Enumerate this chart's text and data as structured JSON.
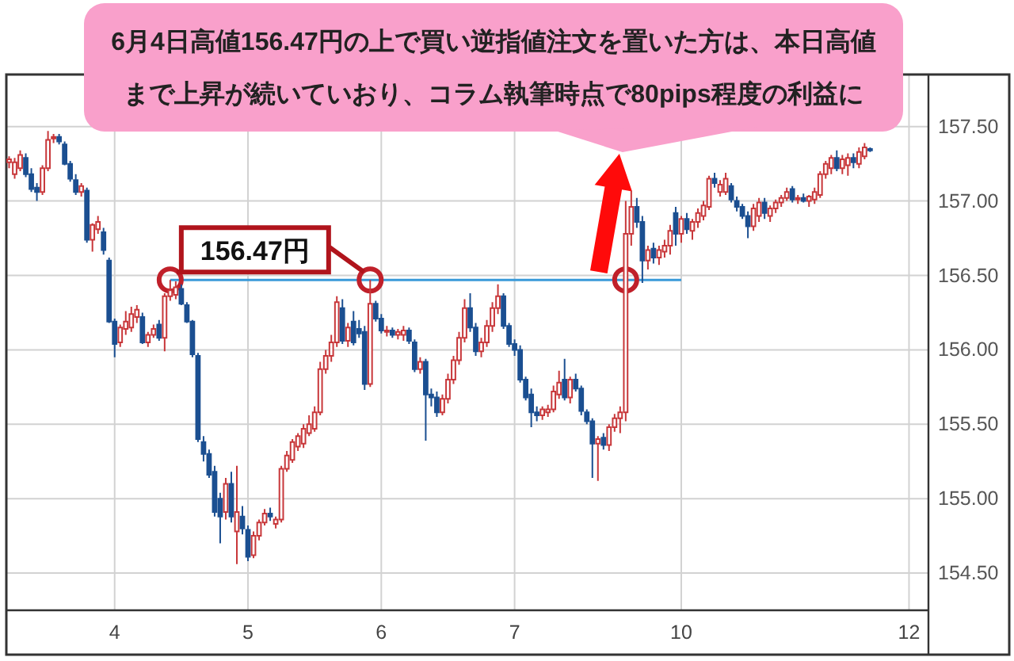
{
  "chart_data": {
    "type": "candlestick",
    "annotations": [
      "6月4日高値156.47円の上で買い逆指値注文を置いた方は、本日高値まで上昇が続いていおり、コラム執筆時点で80pips程度の利益に",
      {
        "text": "156.47円",
        "y": 156.47
      }
    ],
    "categories": [
      null,
      null,
      null,
      null,
      null,
      null,
      null,
      null,
      null,
      null,
      null,
      null,
      null,
      null,
      null,
      null,
      null,
      null,
      null,
      "4",
      null,
      null,
      null,
      null,
      null,
      null,
      null,
      null,
      null,
      null,
      null,
      null,
      null,
      null,
      null,
      null,
      null,
      null,
      null,
      null,
      null,
      null,
      null,
      "5",
      null,
      null,
      null,
      null,
      null,
      null,
      null,
      null,
      null,
      null,
      null,
      null,
      null,
      null,
      null,
      null,
      null,
      null,
      null,
      null,
      null,
      null,
      null,
      "6",
      null,
      null,
      null,
      null,
      null,
      null,
      null,
      null,
      null,
      null,
      null,
      null,
      null,
      null,
      null,
      null,
      null,
      null,
      null,
      null,
      null,
      null,
      null,
      "7",
      null,
      null,
      null,
      null,
      null,
      null,
      null,
      null,
      null,
      null,
      null,
      null,
      null,
      null,
      null,
      null,
      null,
      null,
      null,
      null,
      null,
      null,
      null,
      null,
      null,
      null,
      null,
      null,
      null,
      "10",
      null,
      null,
      null,
      null,
      null,
      null,
      null,
      null,
      null,
      null,
      null,
      null,
      null,
      null,
      null,
      null,
      null,
      null,
      null,
      null,
      null,
      null,
      null,
      null,
      null,
      null,
      null,
      null,
      null,
      null,
      null,
      null,
      null,
      null,
      null,
      null,
      null,
      null,
      null,
      null,
      "12",
      null,
      null,
      null
    ],
    "ylim": [
      154.25,
      157.85
    ],
    "yticks": [
      {
        "value": 154.5,
        "label": "154.50"
      },
      {
        "value": 155,
        "label": "155.00"
      },
      {
        "value": 155.5,
        "label": "155.50"
      },
      {
        "value": 156,
        "label": "156.00"
      },
      {
        "value": 156.5,
        "label": "156.50"
      },
      {
        "value": 157,
        "label": "157.00"
      },
      {
        "value": 157.5,
        "label": "157.50"
      }
    ],
    "grid": true,
    "ohlc": [
      [
        157.26,
        157.3,
        157.22,
        157.28
      ],
      [
        157.18,
        157.29,
        157.15,
        157.26
      ],
      [
        157.22,
        157.34,
        157.2,
        157.31
      ],
      [
        157.29,
        157.32,
        157.16,
        157.18
      ],
      [
        157.18,
        157.22,
        157.06,
        157.08
      ],
      [
        157.09,
        157.12,
        157.0,
        157.06
      ],
      [
        157.06,
        157.24,
        157.04,
        157.22
      ],
      [
        157.22,
        157.47,
        157.2,
        157.41
      ],
      [
        157.42,
        157.45,
        157.39,
        157.43
      ],
      [
        157.43,
        157.45,
        157.38,
        157.4
      ],
      [
        157.38,
        157.4,
        157.24,
        157.25
      ],
      [
        157.25,
        157.27,
        157.13,
        157.15
      ],
      [
        157.14,
        157.18,
        157.04,
        157.06
      ],
      [
        157.06,
        157.12,
        157.03,
        157.1
      ],
      [
        157.07,
        157.09,
        156.72,
        156.74
      ],
      [
        156.74,
        156.85,
        156.66,
        156.84
      ],
      [
        156.81,
        156.9,
        156.78,
        156.86
      ],
      [
        156.79,
        156.82,
        156.64,
        156.67
      ],
      [
        156.6,
        156.62,
        156.18,
        156.19
      ],
      [
        156.19,
        156.21,
        155.95,
        156.04
      ],
      [
        156.05,
        156.17,
        156.02,
        156.15
      ],
      [
        156.14,
        156.26,
        156.1,
        156.19
      ],
      [
        156.15,
        156.29,
        156.12,
        156.24
      ],
      [
        156.22,
        156.3,
        156.18,
        156.27
      ],
      [
        156.22,
        156.25,
        156.04,
        156.05
      ],
      [
        156.05,
        156.12,
        156.02,
        156.1
      ],
      [
        156.1,
        156.17,
        156.08,
        156.14
      ],
      [
        156.17,
        156.2,
        156.06,
        156.08
      ],
      [
        156.08,
        156.38,
        155.99,
        156.36
      ],
      [
        156.36,
        156.47,
        156.33,
        156.4
      ],
      [
        156.37,
        156.46,
        156.34,
        156.42
      ],
      [
        156.41,
        156.44,
        156.3,
        156.31
      ],
      [
        156.3,
        156.32,
        156.18,
        156.19
      ],
      [
        156.19,
        156.2,
        155.95,
        155.97
      ],
      [
        155.96,
        155.98,
        155.38,
        155.4
      ],
      [
        155.38,
        155.42,
        155.25,
        155.3
      ],
      [
        155.3,
        155.33,
        155.14,
        155.16
      ],
      [
        155.18,
        155.22,
        154.88,
        154.91
      ],
      [
        155.0,
        155.04,
        154.7,
        154.88
      ],
      [
        154.91,
        155.14,
        154.86,
        155.1
      ],
      [
        155.1,
        155.18,
        154.84,
        154.88
      ],
      [
        154.78,
        155.22,
        154.56,
        154.91
      ],
      [
        154.88,
        154.95,
        154.76,
        154.8
      ],
      [
        154.79,
        154.82,
        154.58,
        154.61
      ],
      [
        154.62,
        154.78,
        154.6,
        154.75
      ],
      [
        154.75,
        154.86,
        154.72,
        154.84
      ],
      [
        154.84,
        154.93,
        154.82,
        154.9
      ],
      [
        154.9,
        154.94,
        154.85,
        154.88
      ],
      [
        154.83,
        154.88,
        154.8,
        154.86
      ],
      [
        154.86,
        155.22,
        154.84,
        155.2
      ],
      [
        155.2,
        155.32,
        155.18,
        155.29
      ],
      [
        155.26,
        155.4,
        155.24,
        155.38
      ],
      [
        155.35,
        155.44,
        155.32,
        155.42
      ],
      [
        155.37,
        155.5,
        155.34,
        155.47
      ],
      [
        155.44,
        155.56,
        155.42,
        155.5
      ],
      [
        155.47,
        155.62,
        155.45,
        155.58
      ],
      [
        155.58,
        155.92,
        155.56,
        155.87
      ],
      [
        155.87,
        156.0,
        155.84,
        155.96
      ],
      [
        155.96,
        156.1,
        155.92,
        156.05
      ],
      [
        156.05,
        156.36,
        156.02,
        156.32
      ],
      [
        156.28,
        156.34,
        156.04,
        156.06
      ],
      [
        156.06,
        156.18,
        156.02,
        156.15
      ],
      [
        156.19,
        156.26,
        156.03,
        156.05
      ],
      [
        156.14,
        156.2,
        156.08,
        156.11
      ],
      [
        156.12,
        156.16,
        155.73,
        155.77
      ],
      [
        155.77,
        156.47,
        155.75,
        156.31
      ],
      [
        156.31,
        156.33,
        156.19,
        156.21
      ],
      [
        156.21,
        156.24,
        156.11,
        156.13
      ],
      [
        156.12,
        156.16,
        156.09,
        156.13
      ],
      [
        156.13,
        156.15,
        156.08,
        156.1
      ],
      [
        156.1,
        156.14,
        156.07,
        156.12
      ],
      [
        156.1,
        156.16,
        156.06,
        156.13
      ],
      [
        156.13,
        156.15,
        156.04,
        156.06
      ],
      [
        156.05,
        156.07,
        155.85,
        155.87
      ],
      [
        155.87,
        155.95,
        155.84,
        155.92
      ],
      [
        155.92,
        155.94,
        155.39,
        155.7
      ],
      [
        155.7,
        155.74,
        155.62,
        155.68
      ],
      [
        155.68,
        155.72,
        155.55,
        155.58
      ],
      [
        155.58,
        155.7,
        155.56,
        155.67
      ],
      [
        155.67,
        155.84,
        155.64,
        155.8
      ],
      [
        155.8,
        155.96,
        155.77,
        155.93
      ],
      [
        155.93,
        156.12,
        155.9,
        156.08
      ],
      [
        156.08,
        156.34,
        156.05,
        156.28
      ],
      [
        156.28,
        156.38,
        156.12,
        156.15
      ],
      [
        156.15,
        156.18,
        155.96,
        155.99
      ],
      [
        155.99,
        156.08,
        155.95,
        156.05
      ],
      [
        156.05,
        156.2,
        156.02,
        156.16
      ],
      [
        156.16,
        156.32,
        156.12,
        156.28
      ],
      [
        156.28,
        156.44,
        156.24,
        156.36
      ],
      [
        156.36,
        156.38,
        156.14,
        156.16
      ],
      [
        156.16,
        156.18,
        156.02,
        156.04
      ],
      [
        156.04,
        156.07,
        155.96,
        156.0
      ],
      [
        156.0,
        156.03,
        155.78,
        155.8
      ],
      [
        155.8,
        155.82,
        155.66,
        155.68
      ],
      [
        155.7,
        155.74,
        155.48,
        155.58
      ],
      [
        155.58,
        155.62,
        155.52,
        155.56
      ],
      [
        155.56,
        155.62,
        155.53,
        155.6
      ],
      [
        155.58,
        155.63,
        155.55,
        155.6
      ],
      [
        155.6,
        155.76,
        155.58,
        155.72
      ],
      [
        155.7,
        155.86,
        155.67,
        155.78
      ],
      [
        155.8,
        155.94,
        155.66,
        155.68
      ],
      [
        155.68,
        155.82,
        155.64,
        155.8
      ],
      [
        155.8,
        155.84,
        155.72,
        155.74
      ],
      [
        155.74,
        155.76,
        155.56,
        155.59
      ],
      [
        155.58,
        155.6,
        155.5,
        155.52
      ],
      [
        155.52,
        155.54,
        155.14,
        155.37
      ],
      [
        155.37,
        155.42,
        155.12,
        155.4
      ],
      [
        155.41,
        155.44,
        155.33,
        155.36
      ],
      [
        155.36,
        155.5,
        155.32,
        155.48
      ],
      [
        155.48,
        155.57,
        155.45,
        155.54
      ],
      [
        155.54,
        155.62,
        155.44,
        155.58
      ],
      [
        155.58,
        157.0,
        155.52,
        156.78
      ],
      [
        156.78,
        157.07,
        156.7,
        156.96
      ],
      [
        156.96,
        157.02,
        156.82,
        156.86
      ],
      [
        156.86,
        156.9,
        156.45,
        156.6
      ],
      [
        156.6,
        156.7,
        156.54,
        156.67
      ],
      [
        156.68,
        156.72,
        156.58,
        156.62
      ],
      [
        156.62,
        156.7,
        156.57,
        156.67
      ],
      [
        156.66,
        156.74,
        156.62,
        156.7
      ],
      [
        156.7,
        156.84,
        156.64,
        156.8
      ],
      [
        156.92,
        156.96,
        156.7,
        156.78
      ],
      [
        156.78,
        156.9,
        156.72,
        156.88
      ],
      [
        156.88,
        156.92,
        156.78,
        156.81
      ],
      [
        156.8,
        156.88,
        156.74,
        156.86
      ],
      [
        156.86,
        156.95,
        156.82,
        156.92
      ],
      [
        156.9,
        157.0,
        156.87,
        156.97
      ],
      [
        156.96,
        157.17,
        156.94,
        157.15
      ],
      [
        157.15,
        157.19,
        157.09,
        157.12
      ],
      [
        157.06,
        157.14,
        157.03,
        157.11
      ],
      [
        157.06,
        157.19,
        157.04,
        157.15
      ],
      [
        157.1,
        157.12,
        156.99,
        157.01
      ],
      [
        157.0,
        157.03,
        156.93,
        156.96
      ],
      [
        156.96,
        156.98,
        156.88,
        156.9
      ],
      [
        156.9,
        156.93,
        156.75,
        156.83
      ],
      [
        156.83,
        156.98,
        156.8,
        156.95
      ],
      [
        156.9,
        157.02,
        156.86,
        156.99
      ],
      [
        156.99,
        157.02,
        156.88,
        156.92
      ],
      [
        156.9,
        156.97,
        156.86,
        156.95
      ],
      [
        156.95,
        157.01,
        156.92,
        156.99
      ],
      [
        156.99,
        157.04,
        156.96,
        157.02
      ],
      [
        157.02,
        157.09,
        157.0,
        157.06
      ],
      [
        157.08,
        157.1,
        156.99,
        157.01
      ],
      [
        157.01,
        157.04,
        156.98,
        157.02
      ],
      [
        157.02,
        157.05,
        156.99,
        157.0
      ],
      [
        157.0,
        157.04,
        156.96,
        157.03
      ],
      [
        157.01,
        157.09,
        156.98,
        157.06
      ],
      [
        157.04,
        157.2,
        157.02,
        157.18
      ],
      [
        157.18,
        157.27,
        157.15,
        157.25
      ],
      [
        157.22,
        157.31,
        157.18,
        157.29
      ],
      [
        157.29,
        157.34,
        157.2,
        157.22
      ],
      [
        157.22,
        157.31,
        157.18,
        157.28
      ],
      [
        157.24,
        157.32,
        157.17,
        157.29
      ],
      [
        157.29,
        157.32,
        157.22,
        157.26
      ],
      [
        157.25,
        157.36,
        157.22,
        157.33
      ],
      [
        157.3,
        157.39,
        157.28,
        157.36
      ],
      [
        157.35,
        157.36,
        157.33,
        157.34
      ],
      null,
      null,
      null,
      null,
      null,
      null,
      null,
      null,
      null,
      null
    ],
    "colors": [
      "#c8373a",
      "#c8373a",
      "#c8373a",
      "#1b4f91",
      "#1b4f91",
      "#1b4f91",
      "#c8373a",
      "#c8373a",
      "#c8373a",
      "#1b4f91",
      "#1b4f91",
      "#1b4f91",
      "#1b4f91",
      "#c8373a",
      "#1b4f91",
      "#c8373a",
      "#c8373a",
      "#1b4f91",
      "#1b4f91",
      "#1b4f91",
      "#c8373a",
      "#c8373a",
      "#c8373a",
      "#c8373a",
      "#1b4f91",
      "#c8373a",
      "#c8373a",
      "#1b4f91",
      "#c8373a",
      "#c8373a",
      "#c8373a",
      "#1b4f91",
      "#1b4f91",
      "#1b4f91",
      "#1b4f91",
      "#1b4f91",
      "#1b4f91",
      "#1b4f91",
      "#1b4f91",
      "#c8373a",
      "#1b4f91",
      "#c8373a",
      "#1b4f91",
      "#1b4f91",
      "#c8373a",
      "#c8373a",
      "#c8373a",
      "#1b4f91",
      "#c8373a",
      "#c8373a",
      "#c8373a",
      "#c8373a",
      "#c8373a",
      "#c8373a",
      "#c8373a",
      "#c8373a",
      "#c8373a",
      "#c8373a",
      "#c8373a",
      "#c8373a",
      "#1b4f91",
      "#c8373a",
      "#1b4f91",
      "#1b4f91",
      "#1b4f91",
      "#c8373a",
      "#1b4f91",
      "#1b4f91",
      "#c8373a",
      "#1b4f91",
      "#c8373a",
      "#c8373a",
      "#1b4f91",
      "#1b4f91",
      "#c8373a",
      "#1b4f91",
      "#1b4f91",
      "#1b4f91",
      "#c8373a",
      "#c8373a",
      "#c8373a",
      "#c8373a",
      "#c8373a",
      "#1b4f91",
      "#1b4f91",
      "#c8373a",
      "#c8373a",
      "#c8373a",
      "#c8373a",
      "#1b4f91",
      "#1b4f91",
      "#1b4f91",
      "#1b4f91",
      "#1b4f91",
      "#1b4f91",
      "#1b4f91",
      "#c8373a",
      "#c8373a",
      "#c8373a",
      "#c8373a",
      "#1b4f91",
      "#c8373a",
      "#1b4f91",
      "#1b4f91",
      "#1b4f91",
      "#1b4f91",
      "#c8373a",
      "#1b4f91",
      "#c8373a",
      "#c8373a",
      "#c8373a",
      "#c8373a",
      "#c8373a",
      "#1b4f91",
      "#1b4f91",
      "#c8373a",
      "#1b4f91",
      "#c8373a",
      "#c8373a",
      "#c8373a",
      "#1b4f91",
      "#c8373a",
      "#1b4f91",
      "#c8373a",
      "#c8373a",
      "#c8373a",
      "#c8373a",
      "#1b4f91",
      "#c8373a",
      "#c8373a",
      "#1b4f91",
      "#1b4f91",
      "#1b4f91",
      "#1b4f91",
      "#c8373a",
      "#c8373a",
      "#1b4f91",
      "#c8373a",
      "#c8373a",
      "#c8373a",
      "#c8373a",
      "#1b4f91",
      "#c8373a",
      "#1b4f91",
      "#c8373a",
      "#c8373a",
      "#c8373a",
      "#c8373a",
      "#c8373a",
      "#1b4f91",
      "#c8373a",
      "#c8373a",
      "#1b4f91",
      "#c8373a",
      "#c8373a",
      "#1b4f91",
      null,
      null,
      null,
      null,
      null,
      null,
      null,
      null,
      null,
      null
    ],
    "series": [
      {
        "type": "line",
        "color": "#3a9ad9",
        "values": [
          null,
          null,
          null,
          null,
          null,
          null,
          null,
          null,
          null,
          null,
          null,
          null,
          null,
          null,
          null,
          null,
          null,
          null,
          null,
          null,
          null,
          null,
          null,
          null,
          null,
          null,
          null,
          null,
          null,
          156.47,
          156.47,
          156.47,
          156.47,
          156.47,
          156.47,
          156.47,
          156.47,
          156.47,
          156.47,
          156.47,
          156.47,
          156.47,
          156.47,
          156.47,
          156.47,
          156.47,
          156.47,
          156.47,
          156.47,
          156.47,
          156.47,
          156.47,
          156.47,
          156.47,
          156.47,
          156.47,
          156.47,
          156.47,
          156.47,
          156.47,
          156.47,
          156.47,
          156.47,
          156.47,
          156.47,
          156.47,
          156.47,
          156.47,
          156.47,
          156.47,
          156.47,
          156.47,
          156.47,
          156.47,
          156.47,
          156.47,
          156.47,
          156.47,
          156.47,
          156.47,
          156.47,
          156.47,
          156.47,
          156.47,
          156.47,
          156.47,
          156.47,
          156.47,
          156.47,
          156.47,
          156.47,
          156.47,
          156.47,
          156.47,
          156.47,
          156.47,
          156.47,
          156.47,
          156.47,
          156.47,
          156.47,
          156.47,
          156.47,
          156.47,
          156.47,
          156.47,
          156.47,
          156.47,
          156.47,
          156.47,
          156.47,
          156.47,
          156.47,
          156.47,
          156.47,
          156.47,
          156.47,
          156.47,
          156.47,
          156.47,
          156.47,
          156.47,
          null,
          null,
          null,
          null,
          null,
          null,
          null,
          null,
          null,
          null,
          null,
          null,
          null,
          null,
          null,
          null,
          null,
          null,
          null,
          null,
          null,
          null,
          null,
          null,
          null,
          null,
          null,
          null,
          null,
          null,
          null,
          null,
          null,
          null,
          null,
          null,
          null,
          null,
          null,
          null,
          null,
          null,
          null,
          null
        ]
      },
      {
        "type": "scatter",
        "color": "#c0202a",
        "marker": "circle",
        "values": [
          null,
          null,
          null,
          null,
          null,
          null,
          null,
          null,
          null,
          null,
          null,
          null,
          null,
          null,
          null,
          null,
          null,
          null,
          null,
          null,
          null,
          null,
          null,
          null,
          null,
          null,
          null,
          null,
          null,
          156.47,
          null,
          null,
          null,
          null,
          null,
          null,
          null,
          null,
          null,
          null,
          null,
          null,
          null,
          null,
          null,
          null,
          null,
          null,
          null,
          null,
          null,
          null,
          null,
          null,
          null,
          null,
          null,
          null,
          null,
          null,
          null,
          null,
          null,
          null,
          null,
          156.47,
          null,
          null,
          null,
          null,
          null,
          null,
          null,
          null,
          null,
          null,
          null,
          null,
          null,
          null,
          null,
          null,
          null,
          null,
          null,
          null,
          null,
          null,
          null,
          null,
          null,
          null,
          null,
          null,
          null,
          null,
          null,
          null,
          null,
          null,
          null,
          null,
          null,
          null,
          null,
          null,
          null,
          null,
          null,
          null,
          null,
          156.47,
          null,
          null,
          null,
          null,
          null,
          null,
          null,
          null,
          null,
          null,
          null,
          null,
          null,
          null,
          null,
          null,
          null,
          null,
          null,
          null,
          null,
          null,
          null,
          null,
          null,
          null,
          null,
          null,
          null,
          null,
          null,
          null,
          null,
          null,
          null,
          null,
          null,
          null,
          null,
          null,
          null,
          null,
          null,
          null,
          null,
          null,
          null,
          null,
          null,
          null,
          null,
          null,
          null,
          null
        ]
      }
    ]
  }
}
